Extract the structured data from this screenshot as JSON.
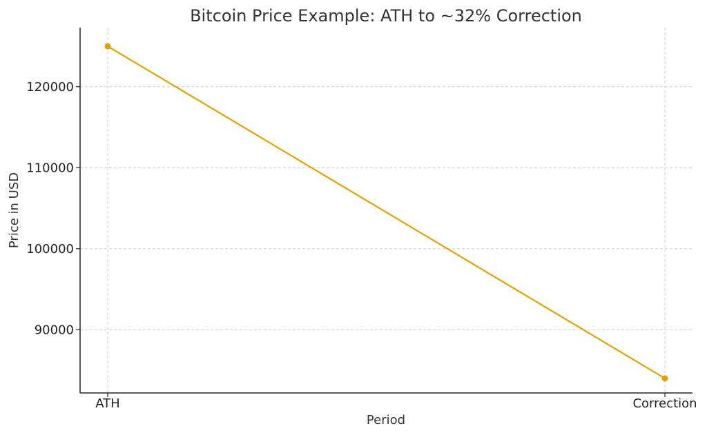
{
  "chart_data": {
    "type": "line",
    "title": "Bitcoin Price Example: ATH to ~32% Correction",
    "xlabel": "Period",
    "ylabel": "Price in USD",
    "categories": [
      "ATH",
      "Correction"
    ],
    "series": [
      {
        "values": [
          125000,
          84000
        ],
        "color": "#e69f00"
      }
    ],
    "ylim": [
      82200,
      127300
    ],
    "yticks": [
      90000,
      100000,
      110000,
      120000
    ],
    "grid": true
  }
}
